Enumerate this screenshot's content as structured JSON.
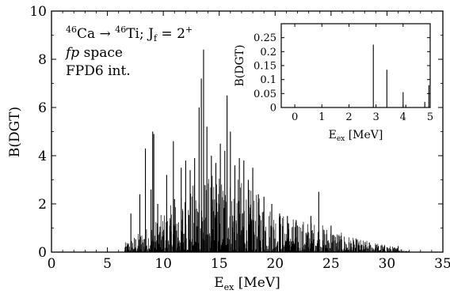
{
  "chart_data": [
    {
      "type": "bar",
      "role": "main",
      "annotations": [
        "⁴⁶Ca → ⁴⁶Ti; J_f = 2⁺",
        "fp space",
        "FPD6 int."
      ],
      "annotation_parts": {
        "reaction_a": "46",
        "reaction_ca": "Ca → ",
        "reaction_b": "46",
        "reaction_ti": "Ti; J",
        "reaction_f": "f",
        "reaction_eq": " = 2",
        "reaction_plus": "+",
        "space_italic": "fp",
        "space_rest": " space",
        "interaction": "FPD6 int."
      },
      "xlabel": "E_ex [MeV]",
      "xlabel_main": "E",
      "xlabel_sub": "ex",
      "xlabel_unit": " [MeV]",
      "ylabel": "B(DGT)",
      "xlim": [
        0,
        35
      ],
      "ylim": [
        0,
        10
      ],
      "xticks": [
        0,
        5,
        10,
        15,
        20,
        25,
        30,
        35
      ],
      "yticks": [
        0,
        2,
        4,
        6,
        8,
        10
      ],
      "x": [
        7.1,
        7.9,
        8.4,
        8.9,
        9.05,
        9.15,
        9.5,
        10.3,
        10.9,
        11.0,
        11.6,
        12.0,
        12.4,
        12.8,
        13.2,
        13.4,
        13.6,
        13.9,
        14.3,
        14.7,
        15.1,
        15.5,
        15.7,
        16.0,
        16.4,
        16.8,
        17.2,
        17.6,
        18.0,
        18.5,
        19.0,
        19.7,
        20.4,
        21.1,
        22.0,
        23.2,
        23.9,
        25.0,
        27.0,
        29.0,
        31.0
      ],
      "y": [
        1.6,
        2.4,
        4.3,
        2.6,
        5.0,
        4.9,
        2.0,
        3.2,
        4.6,
        2.2,
        3.5,
        3.8,
        3.4,
        3.9,
        6.0,
        7.2,
        8.4,
        5.2,
        4.0,
        3.7,
        4.5,
        4.2,
        6.5,
        5.0,
        3.6,
        3.9,
        3.8,
        3.0,
        3.5,
        2.4,
        2.3,
        2.0,
        1.6,
        1.5,
        1.1,
        1.5,
        2.5,
        1.1,
        0.5,
        0.3,
        0.25
      ],
      "dense_band": [
        [
          6.5,
          0.25
        ],
        [
          9,
          0.8
        ],
        [
          11,
          1.4
        ],
        [
          13,
          2.0
        ],
        [
          15,
          2.2
        ],
        [
          17,
          2.0
        ],
        [
          19,
          1.4
        ],
        [
          21,
          1.0
        ],
        [
          24,
          0.8
        ],
        [
          27,
          0.4
        ],
        [
          30,
          0.2
        ],
        [
          32,
          0.05
        ]
      ],
      "color": "#000000",
      "grid": false
    },
    {
      "type": "bar",
      "role": "inset",
      "xlabel": "E_ex [MeV]",
      "xlabel_main": "E",
      "xlabel_sub": "ex",
      "xlabel_unit": " [MeV]",
      "ylabel": "B(DGT)",
      "xlim": [
        -0.5,
        5
      ],
      "ylim": [
        0,
        0.3
      ],
      "xticks": [
        0,
        1,
        2,
        3,
        4,
        5
      ],
      "yticks": [
        0,
        0.05,
        0.1,
        0.15,
        0.2,
        0.25
      ],
      "ytick_labels": [
        "0",
        "0.05",
        "0.1",
        "0.15",
        "0.2",
        "0.25"
      ],
      "x": [
        2.9,
        3.4,
        4.0,
        4.1,
        4.8,
        4.95
      ],
      "y": [
        0.225,
        0.135,
        0.055,
        0.01,
        0.02,
        0.08
      ],
      "color": "#000000",
      "grid": false
    }
  ]
}
